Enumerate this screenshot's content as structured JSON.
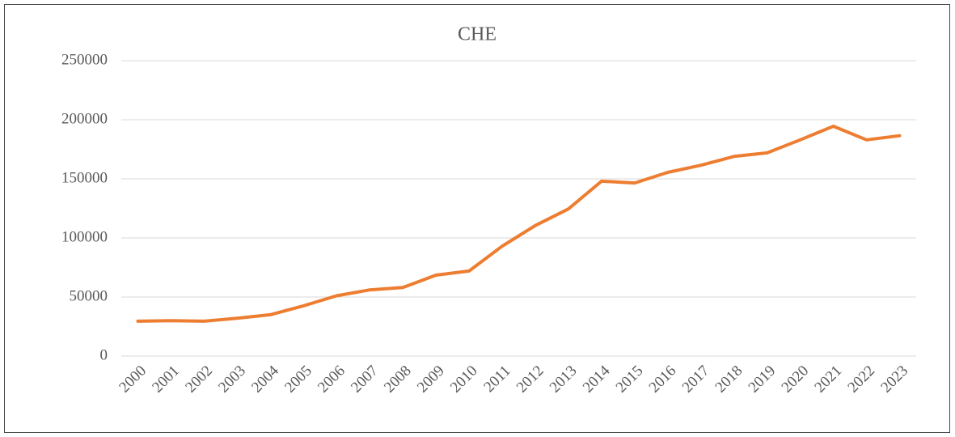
{
  "chart_data": {
    "type": "line",
    "title": "CHE",
    "categories": [
      "2000",
      "2001",
      "2002",
      "2003",
      "2004",
      "2005",
      "2006",
      "2007",
      "2008",
      "2009",
      "2010",
      "2011",
      "2012",
      "2013",
      "2014",
      "2015",
      "2016",
      "2017",
      "2018",
      "2019",
      "2020",
      "2021",
      "2022",
      "2023"
    ],
    "series": [
      {
        "name": "CHE",
        "color": "#ed7d31",
        "values": [
          29500,
          30000,
          29500,
          32000,
          35000,
          42500,
          51000,
          56000,
          58000,
          68500,
          72000,
          93000,
          110500,
          124500,
          148000,
          146500,
          155500,
          161500,
          169000,
          172000,
          183000,
          194500,
          183000,
          186500
        ]
      }
    ],
    "ylim": [
      0,
      250000
    ],
    "yticks": [
      0,
      50000,
      100000,
      150000,
      200000,
      250000
    ],
    "grid": true
  }
}
